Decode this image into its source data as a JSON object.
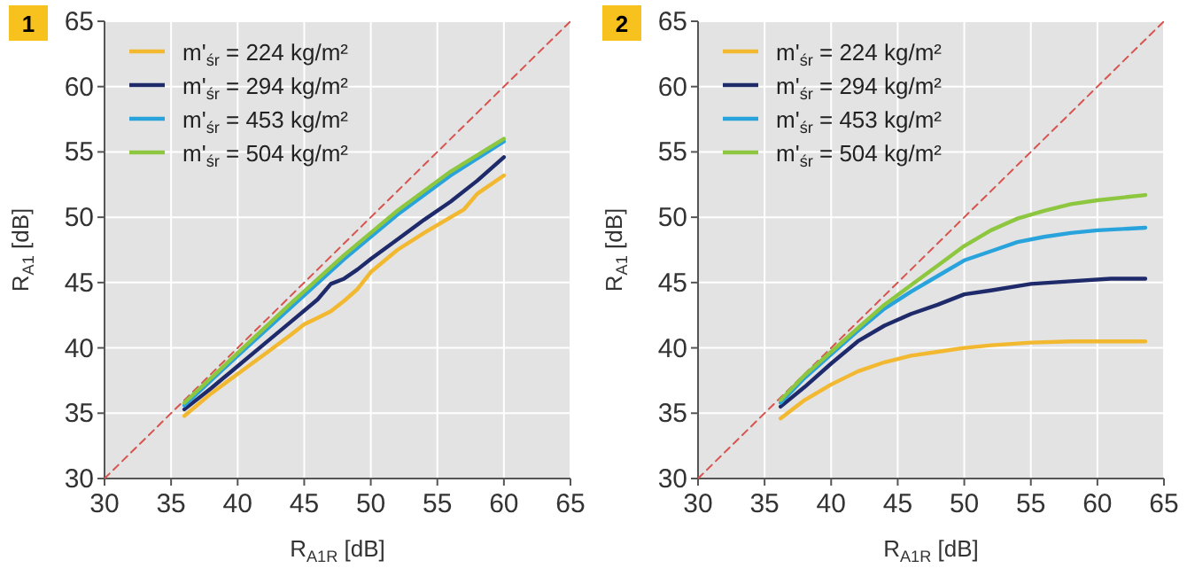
{
  "chart_data": [
    {
      "type": "line",
      "title": "1",
      "xlabel": "R$_{A1R}$ [dB]",
      "ylabel": "R$_{A1}$ [dB]",
      "xlim": [
        30,
        65
      ],
      "ylim": [
        30,
        65
      ],
      "xticks": [
        30,
        35,
        40,
        45,
        50,
        55,
        60,
        65
      ],
      "yticks": [
        30,
        35,
        40,
        45,
        50,
        55,
        60,
        65
      ],
      "grid": true,
      "legend": "top left",
      "series": [
        {
          "x": [
            30,
            65
          ],
          "values": [
            30,
            65
          ],
          "color": "#d9534f",
          "line_style": "dashed"
        },
        {
          "name": "m'$_{śr}$ = 224 kg/m²",
          "color": "#f2b830",
          "x": [
            36,
            38,
            40,
            42,
            44,
            45,
            46,
            47,
            48,
            49,
            50,
            52,
            54,
            56,
            57,
            58,
            60
          ],
          "values": [
            34.8,
            36.5,
            38,
            39.5,
            41,
            41.8,
            42.3,
            42.8,
            43.6,
            44.5,
            45.8,
            47.5,
            48.8,
            50,
            50.6,
            51.8,
            53.2
          ]
        },
        {
          "name": "m'$_{śr}$ = 294 kg/m²",
          "color": "#1f2a6b",
          "x": [
            36,
            38,
            40,
            42,
            44,
            46,
            47,
            48,
            49,
            50,
            52,
            54,
            56,
            58,
            60
          ],
          "values": [
            35.3,
            36.9,
            38.6,
            40.3,
            42,
            43.7,
            44.9,
            45.3,
            46,
            46.8,
            48.3,
            49.8,
            51.2,
            52.8,
            54.6
          ]
        },
        {
          "name": "m'$_{śr}$ = 453 kg/m²",
          "color": "#29a3dc",
          "x": [
            36,
            40,
            44,
            48,
            52,
            56,
            60
          ],
          "values": [
            35.6,
            39.4,
            43.1,
            46.8,
            50.2,
            53.2,
            55.8
          ]
        },
        {
          "name": "m'$_{śr}$ = 504 kg/m²",
          "color": "#8dc63f",
          "x": [
            36,
            40,
            44,
            48,
            52,
            56,
            60
          ],
          "values": [
            35.8,
            39.6,
            43.4,
            47.1,
            50.5,
            53.5,
            56
          ]
        }
      ]
    },
    {
      "type": "line",
      "title": "2",
      "xlabel": "R$_{A1R}$ [dB]",
      "ylabel": "R$_{A1}$ [dB]",
      "xlim": [
        30,
        65
      ],
      "ylim": [
        30,
        65
      ],
      "xticks": [
        30,
        35,
        40,
        45,
        50,
        55,
        60,
        65
      ],
      "yticks": [
        30,
        35,
        40,
        45,
        50,
        55,
        60,
        65
      ],
      "grid": true,
      "legend": "top left",
      "series": [
        {
          "x": [
            30,
            65
          ],
          "values": [
            30,
            65
          ],
          "color": "#d9534f",
          "line_style": "dashed"
        },
        {
          "name": "m'$_{śr}$ = 224 kg/m²",
          "color": "#f2b830",
          "x": [
            36.2,
            38,
            40,
            42,
            44,
            46,
            48,
            50,
            52,
            55,
            58,
            63.6
          ],
          "values": [
            34.6,
            36,
            37.2,
            38.2,
            38.9,
            39.4,
            39.7,
            40,
            40.2,
            40.4,
            40.5,
            40.5
          ]
        },
        {
          "name": "m'$_{śr}$ = 294 kg/m²",
          "color": "#1f2a6b",
          "x": [
            36.2,
            38,
            40,
            42,
            44,
            46,
            48,
            50,
            52,
            55,
            58,
            61,
            63.6
          ],
          "values": [
            35.5,
            37,
            38.8,
            40.5,
            41.7,
            42.6,
            43.3,
            44.1,
            44.4,
            44.9,
            45.1,
            45.3,
            45.3
          ]
        },
        {
          "name": "m'$_{śr}$ = 453 kg/m²",
          "color": "#29a3dc",
          "x": [
            36.2,
            38,
            40,
            42,
            44,
            46,
            48,
            50,
            52,
            54,
            56,
            58,
            60,
            63.6
          ],
          "values": [
            35.8,
            37.7,
            39.5,
            41.3,
            43,
            44.3,
            45.5,
            46.7,
            47.4,
            48.1,
            48.5,
            48.8,
            49,
            49.2
          ]
        },
        {
          "name": "m'$_{śr}$ = 504 kg/m²",
          "color": "#8dc63f",
          "x": [
            36.2,
            38,
            40,
            42,
            44,
            46,
            48,
            50,
            52,
            54,
            56,
            58,
            60,
            63.6
          ],
          "values": [
            36,
            37.9,
            39.7,
            41.5,
            43.3,
            44.8,
            46.3,
            47.8,
            49,
            49.9,
            50.5,
            51,
            51.3,
            51.7
          ]
        }
      ]
    }
  ]
}
